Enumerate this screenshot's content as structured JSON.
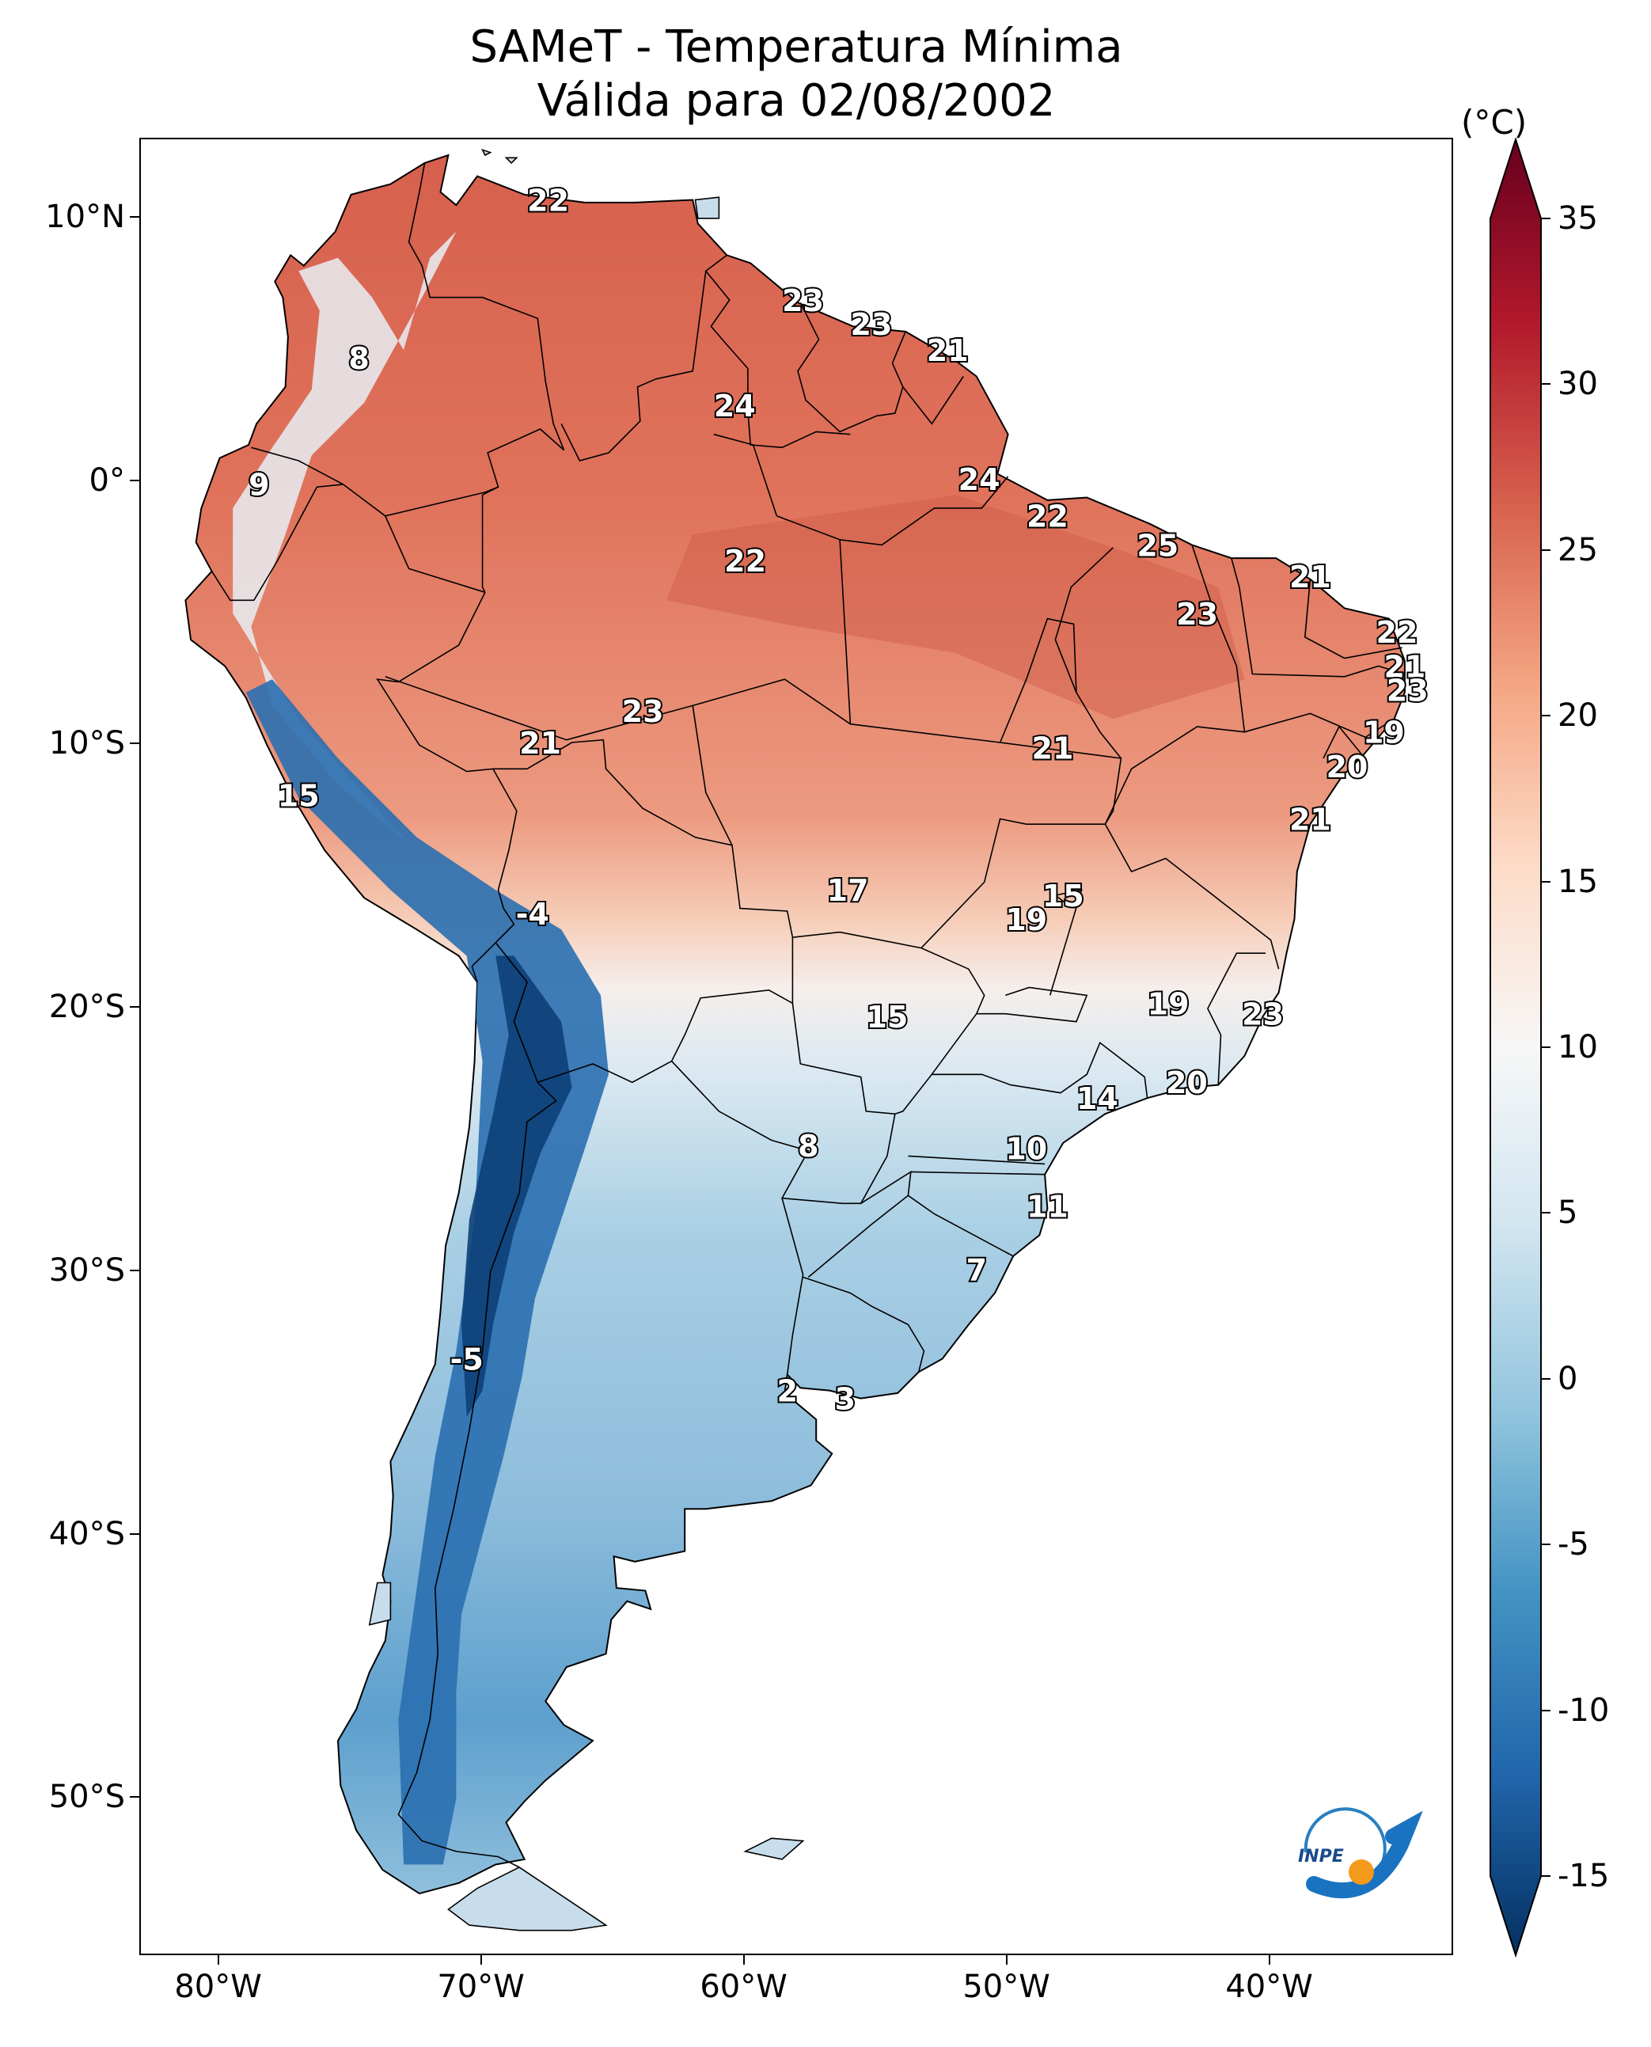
{
  "title": {
    "line1": "SAMeT - Temperatura Mínima",
    "line2": "Válida para 02/08/2002"
  },
  "axes": {
    "lat_ticks": [
      {
        "value": 10,
        "label": "10°N"
      },
      {
        "value": 0,
        "label": "0°"
      },
      {
        "value": -10,
        "label": "10°S"
      },
      {
        "value": -20,
        "label": "20°S"
      },
      {
        "value": -30,
        "label": "30°S"
      },
      {
        "value": -40,
        "label": "40°S"
      },
      {
        "value": -50,
        "label": "50°S"
      }
    ],
    "lon_ticks": [
      {
        "value": -80,
        "label": "80°W"
      },
      {
        "value": -70,
        "label": "70°W"
      },
      {
        "value": -60,
        "label": "60°W"
      },
      {
        "value": -50,
        "label": "50°W"
      },
      {
        "value": -40,
        "label": "40°W"
      }
    ],
    "lon_range": [
      -83,
      -33
    ],
    "lat_range": [
      -56,
      13
    ]
  },
  "colorbar": {
    "unit": "(°C)",
    "range": [
      -15,
      35
    ],
    "ticks": [
      "35",
      "30",
      "25",
      "20",
      "15",
      "10",
      "5",
      "0",
      "-5",
      "-10",
      "-15"
    ],
    "colormap": "RdBu_r",
    "colors": [
      "#053061",
      "#2166ac",
      "#4393c3",
      "#92c5de",
      "#d1e5f0",
      "#f7f7f7",
      "#fddbc7",
      "#f4a582",
      "#d6604d",
      "#b2182b",
      "#67001f"
    ]
  },
  "station_values": [
    {
      "lon": -67.5,
      "lat": 10.6,
      "label": "22"
    },
    {
      "lon": -74.7,
      "lat": 4.6,
      "label": "8"
    },
    {
      "lon": -78.5,
      "lat": -0.2,
      "label": "9"
    },
    {
      "lon": -57.8,
      "lat": 6.8,
      "label": "23"
    },
    {
      "lon": -55.2,
      "lat": 5.9,
      "label": "23"
    },
    {
      "lon": -52.3,
      "lat": 4.9,
      "label": "21"
    },
    {
      "lon": -60.4,
      "lat": 2.8,
      "label": "24"
    },
    {
      "lon": -51.1,
      "lat": 0.0,
      "label": "24"
    },
    {
      "lon": -48.5,
      "lat": -1.4,
      "label": "22"
    },
    {
      "lon": -44.3,
      "lat": -2.5,
      "label": "25"
    },
    {
      "lon": -60.0,
      "lat": -3.1,
      "label": "22"
    },
    {
      "lon": -42.8,
      "lat": -5.1,
      "label": "23"
    },
    {
      "lon": -38.5,
      "lat": -3.7,
      "label": "21"
    },
    {
      "lon": -35.2,
      "lat": -5.8,
      "label": "22"
    },
    {
      "lon": -34.9,
      "lat": -7.1,
      "label": "21"
    },
    {
      "lon": -34.8,
      "lat": -8.0,
      "label": "23"
    },
    {
      "lon": -35.7,
      "lat": -9.6,
      "label": "19"
    },
    {
      "lon": -37.1,
      "lat": -10.9,
      "label": "20"
    },
    {
      "lon": -38.5,
      "lat": -12.9,
      "label": "21"
    },
    {
      "lon": -48.3,
      "lat": -10.2,
      "label": "21"
    },
    {
      "lon": -63.9,
      "lat": -8.8,
      "label": "23"
    },
    {
      "lon": -67.8,
      "lat": -10.0,
      "label": "21"
    },
    {
      "lon": -77.0,
      "lat": -12.0,
      "label": "15"
    },
    {
      "lon": -68.1,
      "lat": -16.5,
      "label": "-4"
    },
    {
      "lon": -56.1,
      "lat": -15.6,
      "label": "17"
    },
    {
      "lon": -47.9,
      "lat": -15.8,
      "label": "15"
    },
    {
      "lon": -49.3,
      "lat": -16.7,
      "label": "19"
    },
    {
      "lon": -54.6,
      "lat": -20.4,
      "label": "15"
    },
    {
      "lon": -43.9,
      "lat": -19.9,
      "label": "19"
    },
    {
      "lon": -40.3,
      "lat": -20.3,
      "label": "23"
    },
    {
      "lon": -43.2,
      "lat": -22.9,
      "label": "20"
    },
    {
      "lon": -46.6,
      "lat": -23.5,
      "label": "14"
    },
    {
      "lon": -57.6,
      "lat": -25.3,
      "label": "8"
    },
    {
      "lon": -49.3,
      "lat": -25.4,
      "label": "10"
    },
    {
      "lon": -48.5,
      "lat": -27.6,
      "label": "11"
    },
    {
      "lon": -51.2,
      "lat": -30.0,
      "label": "7"
    },
    {
      "lon": -70.6,
      "lat": -33.4,
      "label": "-5"
    },
    {
      "lon": -58.4,
      "lat": -34.6,
      "label": "2"
    },
    {
      "lon": -56.2,
      "lat": -34.9,
      "label": "3"
    }
  ],
  "logo": {
    "text": "INPE"
  }
}
